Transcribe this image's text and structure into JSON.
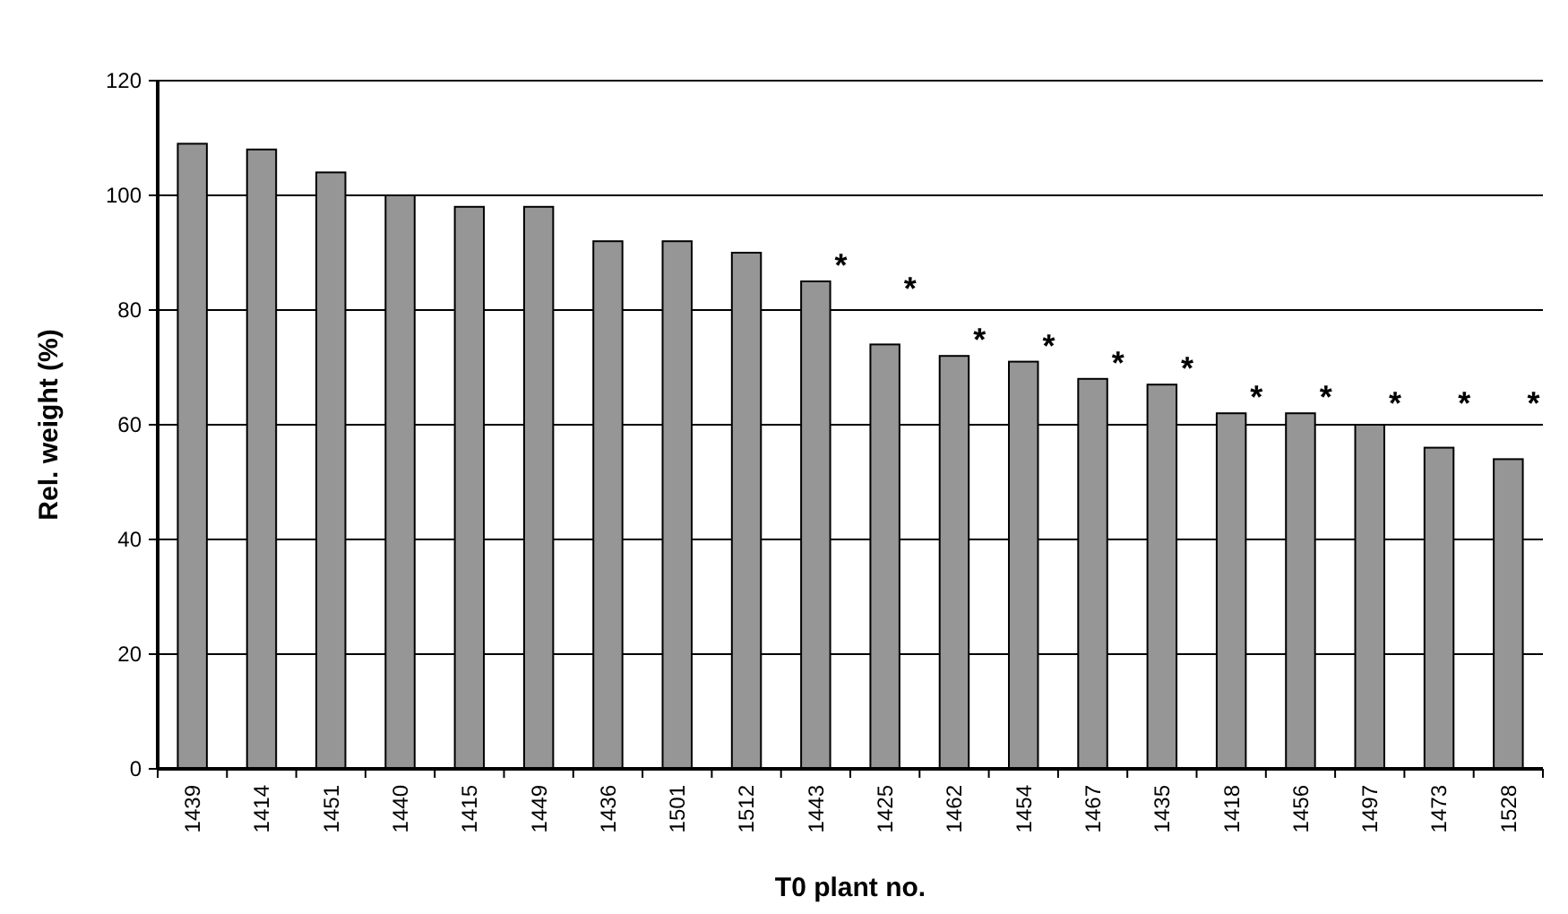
{
  "chart_data": {
    "type": "bar",
    "xlabel": "T0 plant no.",
    "ylabel": "Rel. weight (%)",
    "categories": [
      "1439",
      "1414",
      "1451",
      "1440",
      "1415",
      "1449",
      "1436",
      "1501",
      "1512",
      "1443",
      "1425",
      "1462",
      "1454",
      "1467",
      "1435",
      "1418",
      "1456",
      "1497",
      "1473",
      "1528"
    ],
    "values": [
      109,
      108,
      104,
      100,
      98,
      98,
      92,
      92,
      90,
      85,
      74,
      72,
      71,
      68,
      67,
      62,
      62,
      60,
      56,
      54
    ],
    "color": "#969696",
    "ylim": [
      0,
      120
    ],
    "yticks": [
      0,
      20,
      40,
      60,
      80,
      100,
      120
    ],
    "grid": "y",
    "annotations": [
      {
        "text": "*",
        "x": "1443",
        "y": 85
      },
      {
        "text": "*",
        "x": "1425",
        "y": 74
      },
      {
        "text": "*",
        "x": "1462",
        "y": 72
      },
      {
        "text": "*",
        "x": "1454",
        "y": 71
      },
      {
        "text": "*",
        "x": "1467",
        "y": 68
      },
      {
        "text": "*",
        "x": "1435",
        "y": 67
      },
      {
        "text": "*",
        "x": "1418",
        "y": 62
      },
      {
        "text": "*",
        "x": "1456",
        "y": 62
      },
      {
        "text": "*",
        "x": "1497",
        "y": 60
      },
      {
        "text": "*",
        "x": "1473",
        "y": 56
      },
      {
        "text": "*",
        "x": "1528",
        "y": 54
      }
    ]
  }
}
